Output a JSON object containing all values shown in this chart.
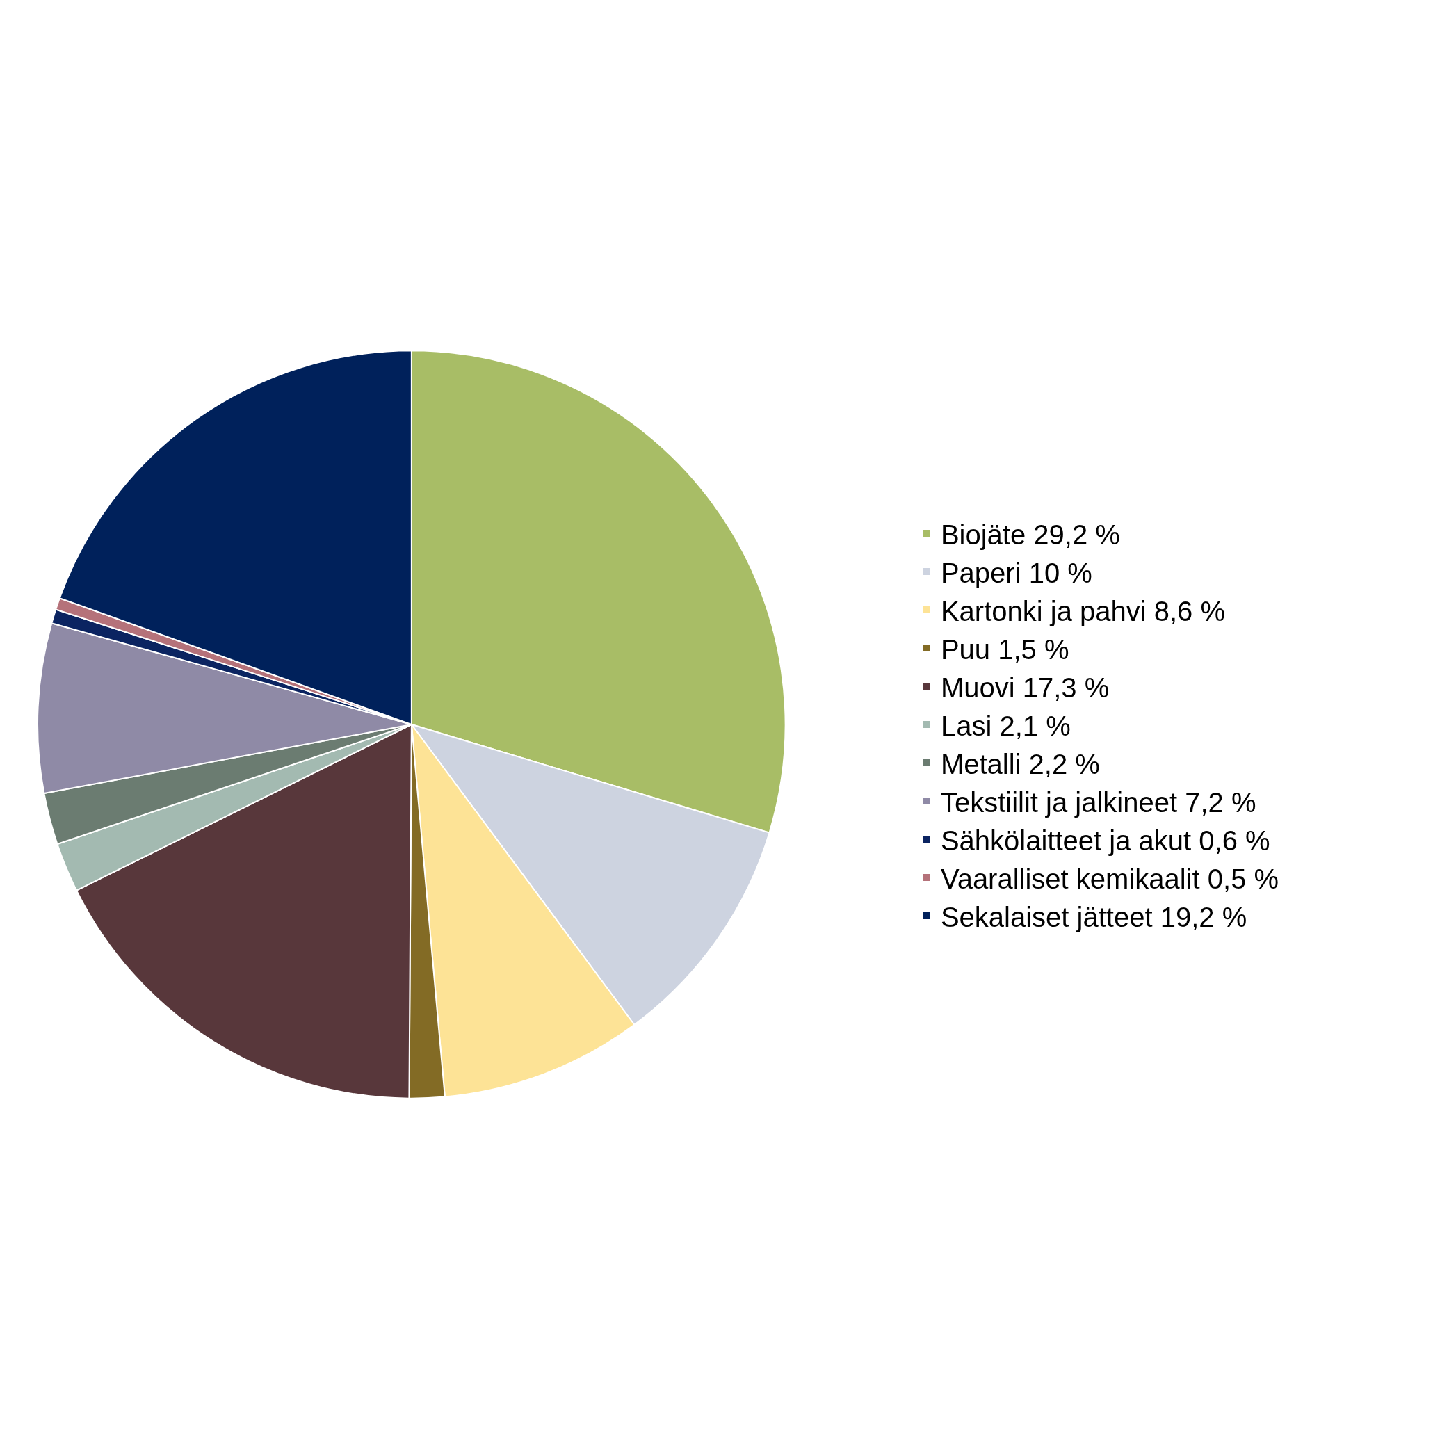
{
  "chart_data": {
    "type": "pie",
    "categories": [
      "Biojäte 29,2 %",
      "Paperi 10 %",
      "Kartonki ja pahvi 8,6 %",
      "Puu 1,5 %",
      "Muovi 17,3 %",
      "Lasi 2,1 %",
      "Metalli 2,2 %",
      "Tekstiilit ja jalkineet 7,2 %",
      "Sähkölaitteet ja akut 0,6 %",
      "Vaaralliset kemikaalit 0,5 %",
      "Sekalaiset jätteet 19,2 %"
    ],
    "values": [
      29.2,
      10,
      8.6,
      1.5,
      17.3,
      2.1,
      2.2,
      7.2,
      0.6,
      0.5,
      19.2
    ],
    "colors": [
      "#a8bd66",
      "#cdd3e0",
      "#fde396",
      "#836b25",
      "#58373b",
      "#a3bab1",
      "#6b7c71",
      "#8f8aa6",
      "#0b2461",
      "#b5727a",
      "#00215b"
    ],
    "legend": "right"
  }
}
